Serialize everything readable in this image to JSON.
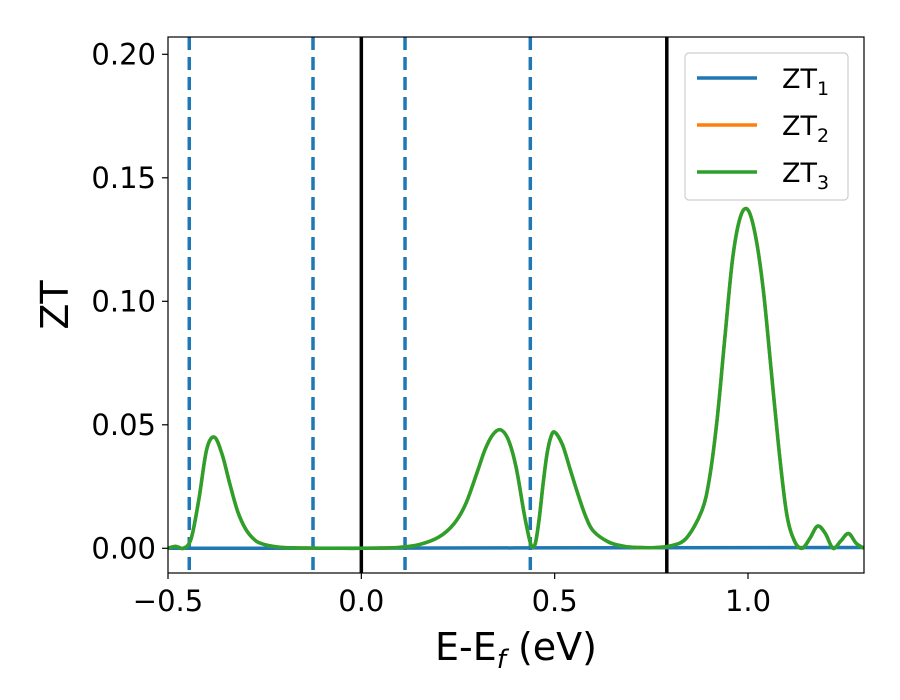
{
  "chart_data": {
    "type": "line",
    "xlabel": "E-E",
    "xlabel_sub": "f",
    "xlabel_unit": " (eV)",
    "ylabel": "ZT",
    "xlim": [
      -0.5,
      1.3
    ],
    "ylim": [
      -0.01,
      0.207
    ],
    "xticks": [
      -0.5,
      0.0,
      0.5,
      1.0
    ],
    "xtick_labels": [
      "−0.5",
      "0.0",
      "0.5",
      "1.0"
    ],
    "yticks": [
      0.0,
      0.05,
      0.1,
      0.15,
      0.2
    ],
    "ytick_labels": [
      "0.00",
      "0.05",
      "0.10",
      "0.15",
      "0.20"
    ],
    "grid": false,
    "legend_position": "top-right",
    "series": [
      {
        "name": "ZT",
        "sub": "1",
        "color": "#1f77b4",
        "x": [
          -0.5,
          1.3
        ],
        "y": [
          0.0,
          0.0003
        ]
      },
      {
        "name": "ZT",
        "sub": "2",
        "color": "#ff7f0e",
        "x": [
          -0.5,
          -0.48,
          -0.46,
          -0.44,
          -0.42,
          -0.4,
          -0.38,
          -0.36,
          -0.34,
          -0.32,
          -0.3,
          -0.28,
          -0.26,
          -0.22,
          -0.18,
          -0.14,
          -0.1,
          -0.05,
          0.0,
          0.05,
          0.1,
          0.15,
          0.2,
          0.24,
          0.27,
          0.3,
          0.32,
          0.34,
          0.36,
          0.38,
          0.4,
          0.42,
          0.43,
          0.44,
          0.45,
          0.46,
          0.47,
          0.48,
          0.49,
          0.5,
          0.52,
          0.54,
          0.56,
          0.58,
          0.6,
          0.64,
          0.68,
          0.72,
          0.76,
          0.8,
          0.84,
          0.88,
          0.9,
          0.92,
          0.94,
          0.96,
          0.98,
          1.0,
          1.02,
          1.04,
          1.06,
          1.08,
          1.1,
          1.12,
          1.14,
          1.16,
          1.18,
          1.2,
          1.22,
          1.24,
          1.26,
          1.28,
          1.3
        ],
        "y": [
          0.0,
          0.0008,
          0.0,
          0.004,
          0.02,
          0.04,
          0.045,
          0.038,
          0.026,
          0.015,
          0.008,
          0.004,
          0.002,
          0.0006,
          0.0002,
          0.0001,
          0.0,
          0.0,
          0.0,
          0.0001,
          0.0004,
          0.0015,
          0.0045,
          0.01,
          0.018,
          0.031,
          0.04,
          0.046,
          0.048,
          0.044,
          0.033,
          0.015,
          0.007,
          0.001,
          0.002,
          0.012,
          0.026,
          0.038,
          0.045,
          0.047,
          0.042,
          0.032,
          0.022,
          0.013,
          0.007,
          0.0025,
          0.0008,
          0.0003,
          0.0003,
          0.001,
          0.004,
          0.015,
          0.028,
          0.052,
          0.085,
          0.117,
          0.134,
          0.137,
          0.126,
          0.104,
          0.072,
          0.04,
          0.014,
          0.003,
          0.0,
          0.004,
          0.009,
          0.006,
          0.0,
          0.003,
          0.006,
          0.002,
          0.0
        ],
        "dashes": "4,999999"
      },
      {
        "name": "ZT",
        "sub": "3",
        "color": "#2ca02c",
        "x": [
          -0.5,
          -0.48,
          -0.46,
          -0.44,
          -0.42,
          -0.4,
          -0.38,
          -0.36,
          -0.34,
          -0.32,
          -0.3,
          -0.28,
          -0.26,
          -0.22,
          -0.18,
          -0.14,
          -0.1,
          -0.05,
          0.0,
          0.05,
          0.1,
          0.15,
          0.2,
          0.24,
          0.27,
          0.3,
          0.32,
          0.34,
          0.36,
          0.38,
          0.4,
          0.42,
          0.43,
          0.44,
          0.45,
          0.46,
          0.47,
          0.48,
          0.49,
          0.5,
          0.52,
          0.54,
          0.56,
          0.58,
          0.6,
          0.64,
          0.68,
          0.72,
          0.76,
          0.8,
          0.84,
          0.88,
          0.9,
          0.92,
          0.94,
          0.96,
          0.98,
          1.0,
          1.02,
          1.04,
          1.06,
          1.08,
          1.1,
          1.12,
          1.14,
          1.16,
          1.18,
          1.2,
          1.22,
          1.24,
          1.26,
          1.28,
          1.3
        ],
        "y": [
          0.0,
          0.0008,
          0.0,
          0.004,
          0.02,
          0.04,
          0.045,
          0.038,
          0.026,
          0.015,
          0.008,
          0.004,
          0.002,
          0.0006,
          0.0002,
          0.0001,
          0.0,
          0.0,
          0.0,
          0.0001,
          0.0004,
          0.0015,
          0.0045,
          0.01,
          0.018,
          0.031,
          0.04,
          0.046,
          0.048,
          0.044,
          0.033,
          0.015,
          0.007,
          0.001,
          0.002,
          0.012,
          0.026,
          0.038,
          0.045,
          0.047,
          0.042,
          0.032,
          0.022,
          0.013,
          0.007,
          0.0025,
          0.0008,
          0.0003,
          0.0003,
          0.001,
          0.004,
          0.015,
          0.028,
          0.052,
          0.085,
          0.117,
          0.134,
          0.137,
          0.126,
          0.104,
          0.072,
          0.04,
          0.014,
          0.003,
          0.0,
          0.004,
          0.009,
          0.006,
          0.0,
          0.003,
          0.006,
          0.002,
          0.0
        ]
      }
    ],
    "vlines_dashed": {
      "color": "#1f77b4",
      "x": [
        -0.445,
        -0.125,
        0.113,
        0.437
      ]
    },
    "vlines_solid": {
      "color": "#000000",
      "x": [
        0.0,
        0.79
      ]
    }
  }
}
